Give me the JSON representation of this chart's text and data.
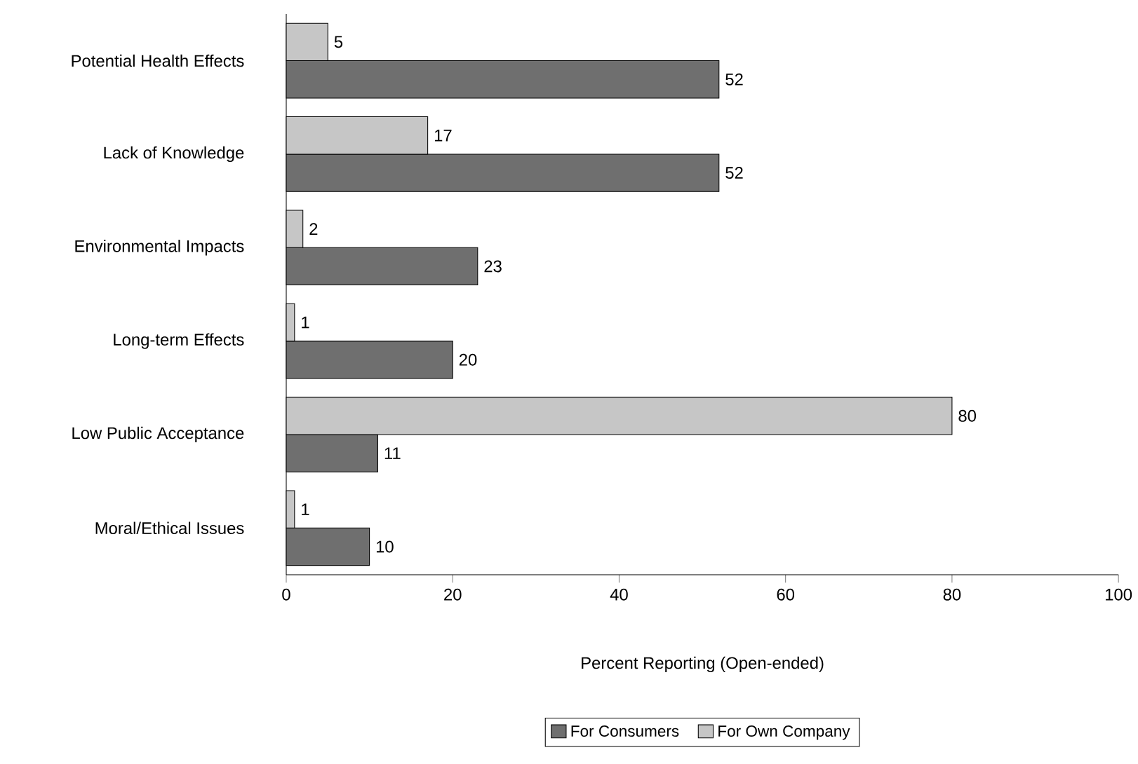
{
  "chart_data": {
    "type": "bar",
    "orientation": "horizontal",
    "categories": [
      "Potential Health Effects",
      "Lack of Knowledge",
      "Environmental Impacts",
      "Long-term Effects",
      "Low Public Acceptance",
      "Moral/Ethical Issues"
    ],
    "series": [
      {
        "name": "For Consumers",
        "color": "#6f6f6f",
        "values": [
          52,
          52,
          23,
          20,
          11,
          10
        ]
      },
      {
        "name": "For Own Company",
        "color": "#c6c6c6",
        "values": [
          5,
          17,
          2,
          1,
          80,
          1
        ]
      }
    ],
    "xlim": [
      0,
      100
    ],
    "xticks": [
      0,
      20,
      40,
      60,
      80,
      100
    ],
    "xlabel": "Percent Reporting (Open-ended)",
    "legend": "bottom",
    "data_labels": true
  }
}
